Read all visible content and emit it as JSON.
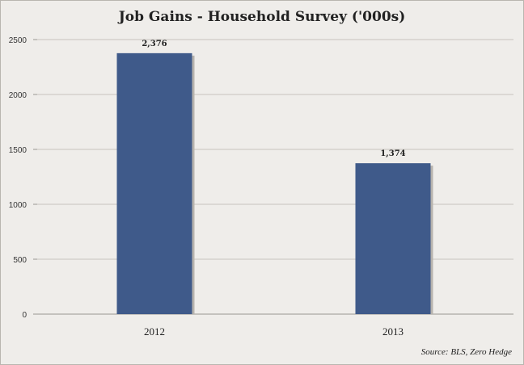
{
  "chart_data": {
    "type": "bar",
    "title": "Job Gains  - Household Survey ('000s)",
    "categories": [
      "2012",
      "2013"
    ],
    "values": [
      2376,
      1374
    ],
    "data_labels": [
      "2,376",
      "1,374"
    ],
    "ylim": [
      0,
      2500
    ],
    "yticks": [
      0,
      500,
      1000,
      1500,
      2000,
      2500
    ],
    "grid": true,
    "bar_color": "#3f5a8a",
    "gridline_color": "#c7c4bf",
    "source": "Source: BLS, Zero Hedge"
  }
}
